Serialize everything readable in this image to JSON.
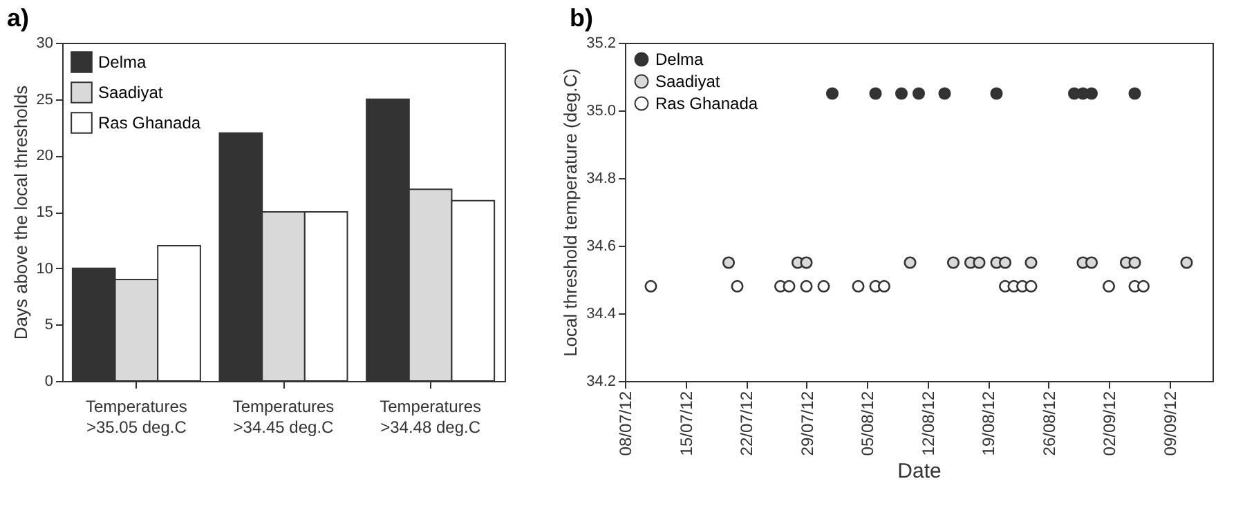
{
  "chart_data": [
    {
      "type": "bar",
      "title": "a)",
      "ylabel": "Days above the local thresholds",
      "categories": [
        "Temperatures\n>35.05 deg.C",
        "Temperatures\n>34.45 deg.C",
        "Temperatures\n>34.48 deg.C"
      ],
      "series": [
        {
          "name": "Delma",
          "color": "#333333",
          "values": [
            10,
            22,
            25
          ]
        },
        {
          "name": "Saadiyat",
          "color": "#d9d9d9",
          "values": [
            9,
            15,
            17
          ]
        },
        {
          "name": "Ras Ghanada",
          "color": "#ffffff",
          "values": [
            12,
            15,
            16
          ]
        }
      ],
      "ylim": [
        0,
        30
      ],
      "yticks": [
        0,
        5,
        10,
        15,
        20,
        25,
        30
      ],
      "grid": false,
      "legend": "top left"
    },
    {
      "type": "scatter",
      "title": "b)",
      "xlabel": "Date",
      "ylabel": "Local threshold temperature (deg.C)",
      "series": [
        {
          "name": "Delma",
          "color": "#333333",
          "x": [
            "--08-01",
            "--08-06",
            "--08-09",
            "--08-11",
            "--08-14",
            "--08-20",
            "--08-29",
            "--08-30",
            "--08-31",
            "--09-05"
          ],
          "values": [
            35.05,
            35.05,
            35.05,
            35.05,
            35.05,
            35.05,
            35.05,
            35.05,
            35.05,
            35.05
          ]
        },
        {
          "name": "Saadiyat",
          "color": "#d9d9d9",
          "x": [
            "--07-20",
            "--07-28",
            "--07-29",
            "--08-10",
            "--08-15",
            "--08-17",
            "--08-18",
            "--08-20",
            "--08-21",
            "--08-24",
            "--08-30",
            "--08-31",
            "--09-04",
            "--09-05",
            "--09-11"
          ],
          "values": [
            34.55,
            34.55,
            34.55,
            34.55,
            34.55,
            34.55,
            34.55,
            34.55,
            34.55,
            34.55,
            34.55,
            34.55,
            34.55,
            34.55,
            34.55
          ]
        },
        {
          "name": "Ras Ghanada",
          "color": "#ffffff",
          "x": [
            "--07-11",
            "--07-21",
            "--07-26",
            "--07-27",
            "--07-29",
            "--07-31",
            "--08-04",
            "--08-06",
            "--08-07",
            "--08-21",
            "--08-22",
            "--08-23",
            "--08-24",
            "--09-02",
            "--09-05",
            "--09-06"
          ],
          "values": [
            34.48,
            34.48,
            34.48,
            34.48,
            34.48,
            34.48,
            34.48,
            34.48,
            34.48,
            34.48,
            34.48,
            34.48,
            34.48,
            34.48,
            34.48,
            34.48
          ]
        }
      ],
      "xlim": [
        "--07-08",
        "--09-14"
      ],
      "xticks": [
        {
          "value": "--07-08",
          "label": "08/07/12"
        },
        {
          "value": "--07-15",
          "label": "15/07/12"
        },
        {
          "value": "--07-22",
          "label": "22/07/12"
        },
        {
          "value": "--07-29",
          "label": "29/07/12"
        },
        {
          "value": "--08-05",
          "label": "05/08/12"
        },
        {
          "value": "--08-12",
          "label": "12/08/12"
        },
        {
          "value": "--08-19",
          "label": "19/08/12"
        },
        {
          "value": "--08-26",
          "label": "26/08/12"
        },
        {
          "value": "--09-02",
          "label": "02/09/12"
        },
        {
          "value": "--09-09",
          "label": "09/09/12"
        }
      ],
      "ylim": [
        34.2,
        35.2
      ],
      "yticks": [
        34.2,
        34.4,
        34.6,
        34.8,
        {
          "value": 35,
          "label": "35.0"
        },
        35.2
      ],
      "grid": false,
      "legend": "top left",
      "marker": "circle"
    }
  ]
}
